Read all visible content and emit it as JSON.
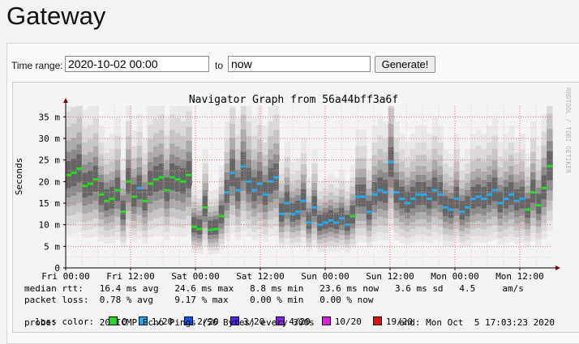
{
  "page": {
    "title": "Gateway"
  },
  "form": {
    "time_range_label": "Time range:",
    "start_value": "2020-10-02 00:00",
    "to_label": "to",
    "end_value": "now",
    "generate_label": "Generate!"
  },
  "graph": {
    "watermark": "RRDTOOL / TOBI OETIKER",
    "median_rtt": "median rtt:   16.4 ms avg   24.6 ms max   8.8 ms min   23.6 ms now   3.6 ms sd   4.5     am/s",
    "packet_loss": "packet loss:  0.78 % avg    9.17 % max    0.00 % min   0.00 % now",
    "loss_color_label": "loss color:",
    "probe": "probe:        20 ICMP Echo Pings (56 Bytes) every 300s",
    "end_text": "end: Mon Oct  5 17:03:23 2020",
    "loss_legend": [
      {
        "label": "0",
        "color": "#22dd22"
      },
      {
        "label": "1/20",
        "color": "#22aaee"
      },
      {
        "label": "2/20",
        "color": "#1155ee"
      },
      {
        "label": "3/20",
        "color": "#5522ee"
      },
      {
        "label": "4/20",
        "color": "#8822dd"
      },
      {
        "label": "10/20",
        "color": "#dd22dd"
      },
      {
        "label": "19/20",
        "color": "#dd1111"
      }
    ]
  },
  "chart_data": {
    "type": "line",
    "title": "Navigator Graph from 56a44bff3a6f",
    "ylabel": "Seconds",
    "xlabel": "",
    "ylim": [
      0,
      37.5
    ],
    "y_ticks": [
      {
        "value": 0,
        "label": "0"
      },
      {
        "value": 5,
        "label": "5 m"
      },
      {
        "value": 10,
        "label": "10 m"
      },
      {
        "value": 15,
        "label": "15 m"
      },
      {
        "value": 20,
        "label": "20 m"
      },
      {
        "value": 25,
        "label": "25 m"
      },
      {
        "value": 30,
        "label": "30 m"
      },
      {
        "value": 35,
        "label": "35 m"
      }
    ],
    "x_range_hours": [
      0,
      90
    ],
    "x_ticks": [
      {
        "hour": 0,
        "label": "Fri 00:00"
      },
      {
        "hour": 12,
        "label": "Fri 12:00"
      },
      {
        "hour": 24,
        "label": "Sat 00:00"
      },
      {
        "hour": 36,
        "label": "Sat 12:00"
      },
      {
        "hour": 48,
        "label": "Sun 00:00"
      },
      {
        "hour": 60,
        "label": "Sun 12:00"
      },
      {
        "hour": 72,
        "label": "Mon 00:00"
      },
      {
        "hour": 84,
        "label": "Mon 12:00"
      }
    ],
    "series": [
      {
        "median_ms": [
          21.5,
          22,
          23,
          19,
          19.5,
          20.5,
          17,
          15.5,
          16,
          18,
          13,
          20,
          16.5,
          18.5,
          15.5,
          19.5,
          20.5,
          21,
          18,
          21,
          20.5,
          20,
          21.5,
          9.5,
          9,
          14,
          8.8,
          9,
          12,
          17.5,
          22,
          18,
          23.5,
          20,
          18,
          19.5,
          17,
          20,
          21,
          12.5,
          15,
          12.5,
          13,
          15.5,
          10.5,
          14,
          10,
          10.5,
          11,
          10.5,
          11.5,
          10,
          12,
          16.5,
          16.5,
          13,
          17,
          18,
          17.5,
          24.5,
          17.5,
          16,
          15,
          16,
          17,
          17,
          16,
          18,
          17,
          14,
          13.5,
          16,
          13,
          14,
          16,
          16.5,
          16,
          17,
          18,
          15,
          16,
          17,
          15.5,
          16,
          13.5,
          17.5,
          14.5,
          18.5,
          23.6
        ],
        "loss_bucket": [
          0,
          0,
          0,
          0,
          0,
          0,
          0,
          0,
          0,
          0,
          0,
          0,
          0,
          1,
          0,
          0,
          0,
          0,
          0,
          0,
          0,
          0,
          0,
          0,
          0,
          0,
          0,
          0,
          0,
          1,
          1,
          1,
          1,
          1,
          1,
          1,
          1,
          1,
          1,
          1,
          1,
          1,
          1,
          1,
          1,
          1,
          1,
          1,
          1,
          1,
          1,
          1,
          0,
          1,
          1,
          1,
          1,
          1,
          1,
          1,
          1,
          1,
          1,
          1,
          1,
          1,
          1,
          1,
          1,
          1,
          1,
          1,
          1,
          1,
          1,
          1,
          1,
          1,
          1,
          1,
          1,
          1,
          1,
          1,
          0,
          0,
          0,
          0,
          0
        ]
      }
    ]
  }
}
